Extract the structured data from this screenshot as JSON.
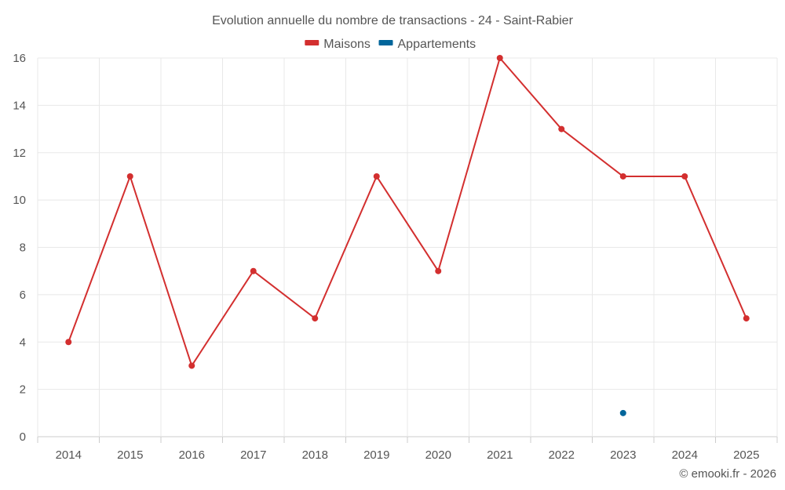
{
  "chart_data": {
    "type": "line",
    "title": "Evolution annuelle du nombre de transactions - 24 - Saint-Rabier",
    "categories": [
      "2014",
      "2015",
      "2016",
      "2017",
      "2018",
      "2019",
      "2020",
      "2021",
      "2022",
      "2023",
      "2024",
      "2025"
    ],
    "series": [
      {
        "name": "Maisons",
        "color": "#d32f2f",
        "values": [
          4,
          11,
          3,
          7,
          5,
          11,
          7,
          16,
          13,
          11,
          11,
          5
        ]
      },
      {
        "name": "Appartements",
        "color": "#01669b",
        "values": [
          null,
          null,
          null,
          null,
          null,
          null,
          null,
          null,
          null,
          1,
          null,
          null
        ]
      }
    ],
    "ylim": [
      0,
      16
    ],
    "yticks": [
      0,
      2,
      4,
      6,
      8,
      10,
      12,
      14,
      16
    ],
    "xlabel": "",
    "ylabel": "",
    "grid": true,
    "legend": "top-center"
  },
  "credit": "© emooki.fr - 2026"
}
